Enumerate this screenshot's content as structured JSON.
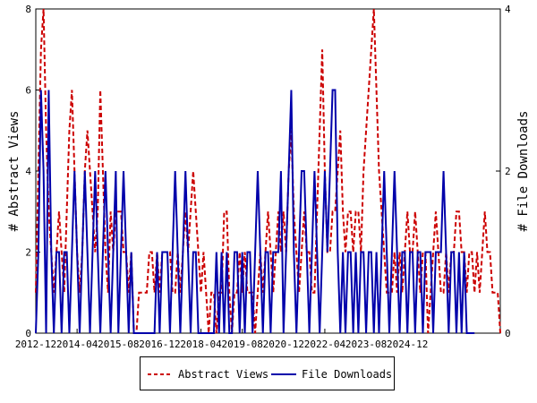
{
  "chart_data": {
    "type": "line",
    "xlabel": "",
    "ylabel_left": "# Abstract Views",
    "ylabel_right": "# File Downloads",
    "y_left_lim": [
      0,
      8
    ],
    "y_right_lim": [
      0,
      4
    ],
    "y_left_ticks": [
      "0",
      "2",
      "4",
      "6",
      "8"
    ],
    "y_right_ticks": [
      "0",
      "2",
      "4"
    ],
    "x_ticks": [
      "2012-12",
      "2014-04",
      "2015-08",
      "2016-12",
      "2018-04",
      "2019-08",
      "2020-12",
      "2022-04",
      "2023-08",
      "2024-12"
    ],
    "x_start": "2012-12",
    "grid": false,
    "legend_position": "bottom-center",
    "series": [
      {
        "name": "Abstract Views",
        "color": "#cc0000",
        "style": "dashed",
        "axis": "left",
        "values": [
          1,
          4,
          7,
          8,
          5,
          3,
          2,
          1,
          2,
          3,
          2,
          1,
          3,
          5,
          6,
          4,
          2,
          1,
          2,
          4,
          5,
          4,
          3,
          2,
          3,
          6,
          4,
          2,
          1,
          3,
          2,
          3,
          3,
          3,
          2,
          2,
          1,
          2,
          0,
          0,
          1,
          1,
          1,
          1,
          2,
          2,
          1,
          2,
          1,
          2,
          2,
          2,
          2,
          1,
          1,
          2,
          1,
          2,
          3,
          2,
          3,
          4,
          3,
          2,
          1,
          2,
          1,
          0,
          1,
          1,
          0,
          1,
          1,
          3,
          3,
          1,
          0,
          1,
          1,
          2,
          1,
          2,
          1,
          1,
          1,
          0,
          1,
          2,
          1,
          2,
          3,
          2,
          1,
          2,
          3,
          2,
          3,
          2,
          4,
          5,
          3,
          2,
          1,
          2,
          3,
          2,
          2,
          1,
          1,
          3,
          5,
          7,
          4,
          2,
          2,
          3,
          3,
          4,
          5,
          3,
          2,
          3,
          3,
          2,
          3,
          3,
          2,
          4,
          5,
          6,
          7,
          8,
          6,
          4,
          3,
          2,
          1,
          1,
          1,
          2,
          1,
          2,
          1,
          2,
          3,
          2,
          2,
          3,
          2,
          1,
          2,
          2,
          0,
          1,
          2,
          3,
          2,
          1,
          1,
          2,
          1,
          2,
          2,
          3,
          3,
          2,
          2,
          1,
          2,
          2,
          1,
          2,
          1,
          2,
          3,
          2,
          2,
          1,
          1,
          1,
          0
        ],
        "note_values": "monthly values from 2012-12"
      },
      {
        "name": "File Downloads",
        "color": "#0000aa",
        "style": "solid",
        "axis": "right",
        "values": [
          0,
          1,
          3,
          2,
          0,
          3,
          1,
          0,
          1,
          1,
          0,
          1,
          1,
          0,
          1,
          2,
          1,
          0,
          1,
          2,
          1,
          0,
          1,
          2,
          1,
          0,
          1,
          2,
          1,
          0,
          1,
          2,
          0,
          1,
          2,
          1,
          0,
          1,
          0,
          0,
          0,
          0,
          0,
          0,
          0,
          0,
          0,
          1,
          0,
          1,
          1,
          1,
          0,
          1,
          2,
          1,
          0,
          1,
          2,
          1,
          0,
          1,
          1,
          0,
          0,
          0,
          0,
          0,
          0,
          0,
          1,
          0,
          1,
          0,
          1,
          0,
          0,
          1,
          1,
          0,
          1,
          0,
          1,
          1,
          0,
          1,
          2,
          1,
          0,
          1,
          1,
          0,
          1,
          1,
          1,
          2,
          0,
          1,
          2,
          3,
          1,
          0,
          1,
          2,
          2,
          1,
          0,
          1,
          2,
          1,
          0,
          1,
          2,
          1,
          2,
          3,
          3,
          1,
          0,
          1,
          0,
          1,
          1,
          0,
          1,
          0,
          1,
          1,
          0,
          1,
          1,
          0,
          1,
          0,
          1,
          2,
          1,
          0,
          1,
          2,
          1,
          0,
          1,
          1,
          0,
          1,
          1,
          0,
          1,
          1,
          0,
          1,
          1,
          1,
          0,
          1,
          1,
          1,
          2,
          1,
          0,
          1,
          1,
          0,
          1,
          0,
          1,
          0,
          0,
          0,
          0
        ],
        "note_values": "monthly values from 2012-12"
      }
    ]
  },
  "legend": {
    "items": [
      {
        "label": "Abstract Views",
        "color": "#cc0000",
        "style": "dashed"
      },
      {
        "label": "File Downloads",
        "color": "#0000aa",
        "style": "solid"
      }
    ]
  }
}
